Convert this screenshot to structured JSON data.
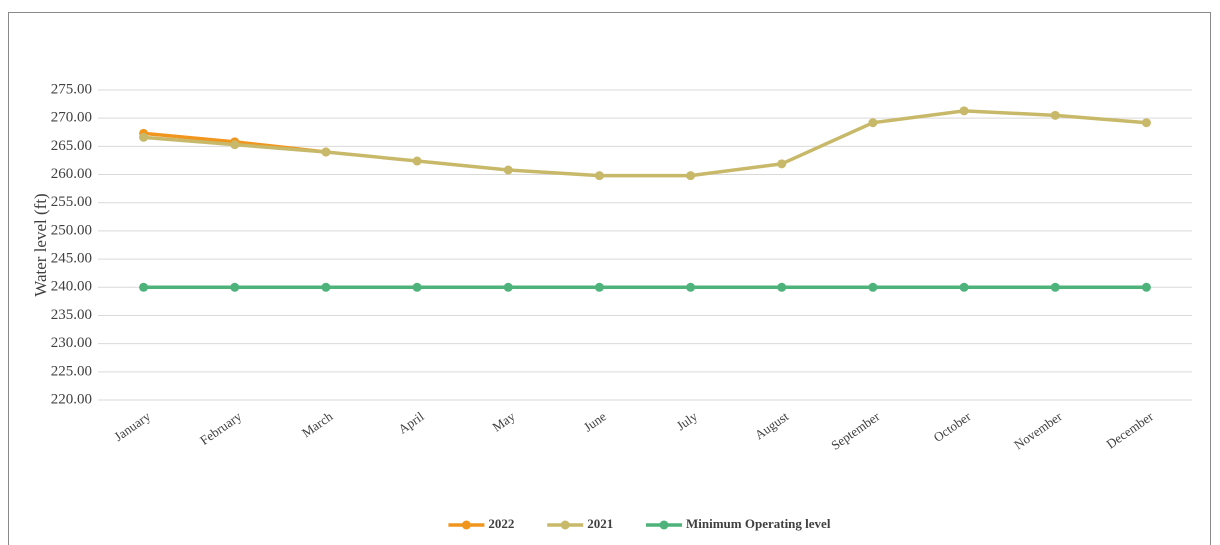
{
  "chart_data": {
    "type": "line",
    "y_label": "Water level (ft)",
    "categories": [
      "January",
      "February",
      "March",
      "April",
      "May",
      "June",
      "July",
      "August",
      "September",
      "October",
      "November",
      "December"
    ],
    "series": [
      {
        "name": "2022",
        "color": "#f0961e",
        "values": [
          267.3,
          265.8,
          264.0,
          null,
          null,
          null,
          null,
          null,
          null,
          null,
          null,
          null
        ]
      },
      {
        "name": "2021",
        "color": "#c8b96a",
        "values": [
          266.6,
          265.3,
          264.0,
          262.4,
          260.8,
          259.8,
          259.8,
          261.9,
          269.2,
          271.3,
          270.5,
          269.2
        ]
      },
      {
        "name": "Minimum Operating level",
        "color": "#4db37a",
        "values": [
          240,
          240,
          240,
          240,
          240,
          240,
          240,
          240,
          240,
          240,
          240,
          240
        ]
      }
    ],
    "ylim": [
      220,
      275
    ],
    "yticks": [
      {
        "value": 220,
        "label": "220.00"
      },
      {
        "value": 225,
        "label": "225.00"
      },
      {
        "value": 230,
        "label": "230.00"
      },
      {
        "value": 235,
        "label": "235.00"
      },
      {
        "value": 240,
        "label": "240.00"
      },
      {
        "value": 245,
        "label": "245.00"
      },
      {
        "value": 250,
        "label": "250.00"
      },
      {
        "value": 255,
        "label": "255.00"
      },
      {
        "value": 260,
        "label": "260.00"
      },
      {
        "value": 265,
        "label": "265.00"
      },
      {
        "value": 270,
        "label": "270.00"
      },
      {
        "value": 275,
        "label": "275.00"
      }
    ],
    "grid": true,
    "legend": "bottom"
  }
}
